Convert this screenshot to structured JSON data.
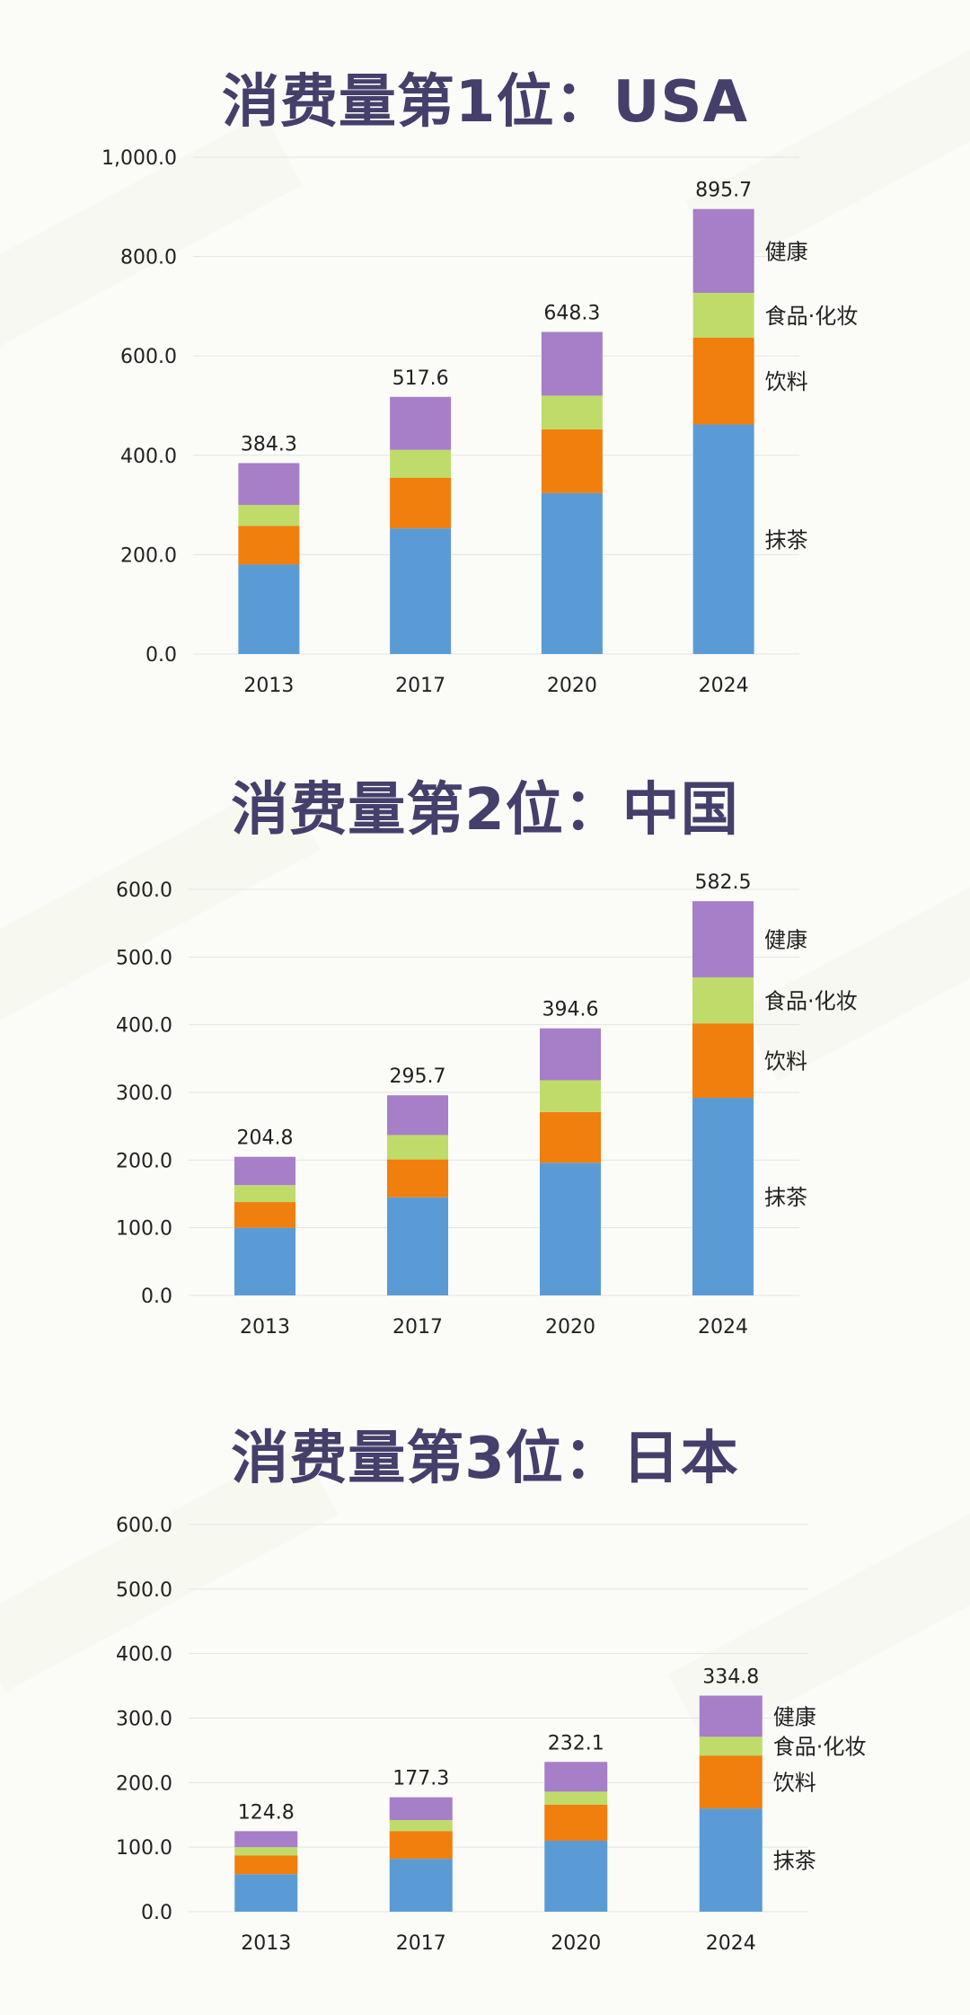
{
  "chart_data": [
    {
      "type": "bar",
      "stacked": true,
      "title": "消费量第1位：USA",
      "categories": [
        "2013",
        "2017",
        "2020",
        "2024"
      ],
      "series": [
        {
          "name": "抹茶",
          "color": "#5b9bd5",
          "values": [
            180.0,
            253.0,
            324.0,
            462.0
          ]
        },
        {
          "name": "饮料",
          "color": "#f07f0d",
          "values": [
            78.0,
            102.0,
            128.0,
            175.0
          ]
        },
        {
          "name": "食品·化妆",
          "color": "#bfdc6b",
          "values": [
            42.0,
            56.0,
            68.0,
            90.0
          ]
        },
        {
          "name": "健康",
          "color": "#a77ec8",
          "values": [
            84.3,
            106.6,
            128.3,
            168.7
          ]
        }
      ],
      "totals": [
        "384.3",
        "517.6",
        "648.3",
        "895.7"
      ],
      "ylim": [
        0,
        1000
      ],
      "yticks": [
        0,
        200,
        400,
        600,
        800,
        1000
      ],
      "ytick_labels": [
        "0.0",
        "200.0",
        "400.0",
        "600.0",
        "800.0",
        "1,000.0"
      ],
      "grid": true,
      "legend": "series labels to the right of the 2024 bar"
    },
    {
      "type": "bar",
      "stacked": true,
      "title": "消费量第2位：中国",
      "categories": [
        "2013",
        "2017",
        "2020",
        "2024"
      ],
      "series": [
        {
          "name": "抹茶",
          "color": "#5b9bd5",
          "values": [
            100.0,
            145.0,
            196.0,
            292.0
          ]
        },
        {
          "name": "饮料",
          "color": "#f07f0d",
          "values": [
            38.0,
            56.0,
            75.0,
            110.0
          ]
        },
        {
          "name": "食品·化妆",
          "color": "#bfdc6b",
          "values": [
            25.0,
            36.0,
            47.0,
            68.0
          ]
        },
        {
          "name": "健康",
          "color": "#a77ec8",
          "values": [
            41.8,
            58.7,
            76.6,
            112.5
          ]
        }
      ],
      "totals": [
        "204.8",
        "295.7",
        "394.6",
        "582.5"
      ],
      "ylim": [
        0,
        600
      ],
      "yticks": [
        0,
        100,
        200,
        300,
        400,
        500,
        600
      ],
      "ytick_labels": [
        "0.0",
        "100.0",
        "200.0",
        "300.0",
        "400.0",
        "500.0",
        "600.0"
      ],
      "grid": true,
      "legend": "series labels to the right of the 2024 bar"
    },
    {
      "type": "bar",
      "stacked": true,
      "title": "消费量第3位：日本",
      "categories": [
        "2013",
        "2017",
        "2020",
        "2024"
      ],
      "series": [
        {
          "name": "抹茶",
          "color": "#5b9bd5",
          "values": [
            58.0,
            82.0,
            110.0,
            160.0
          ]
        },
        {
          "name": "饮料",
          "color": "#f07f0d",
          "values": [
            29.0,
            43.0,
            56.0,
            82.0
          ]
        },
        {
          "name": "食品·化妆",
          "color": "#bfdc6b",
          "values": [
            13.0,
            17.0,
            20.0,
            29.0
          ]
        },
        {
          "name": "健康",
          "color": "#a77ec8",
          "values": [
            24.8,
            35.3,
            46.1,
            63.8
          ]
        }
      ],
      "totals": [
        "124.8",
        "177.3",
        "232.1",
        "334.8"
      ],
      "ylim": [
        0,
        600
      ],
      "yticks": [
        0,
        100,
        200,
        300,
        400,
        500,
        600
      ],
      "ytick_labels": [
        "0.0",
        "100.0",
        "200.0",
        "300.0",
        "400.0",
        "500.0",
        "600.0"
      ],
      "grid": true,
      "legend": "series labels to the right of the 2024 bar"
    }
  ]
}
